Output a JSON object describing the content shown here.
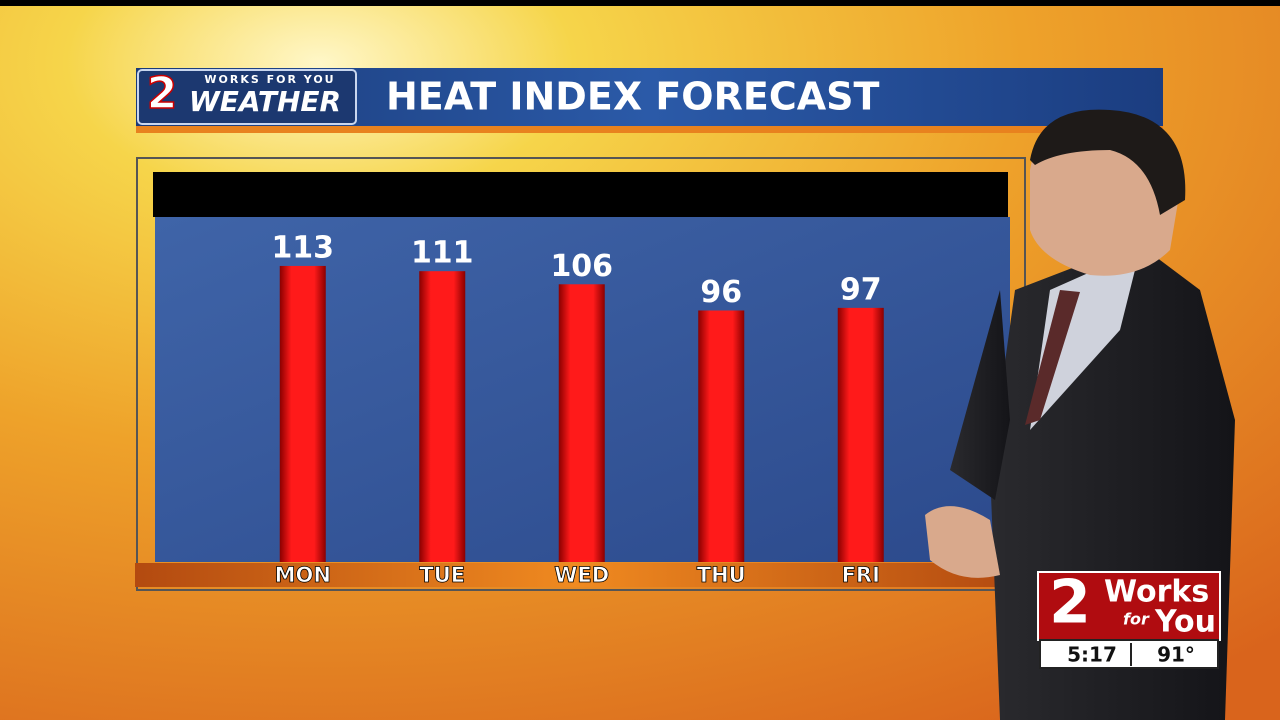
{
  "logo": {
    "number": "2",
    "tagline": "WORKS FOR YOU",
    "name": "WEATHER"
  },
  "chart_data": {
    "type": "bar",
    "title": "HEAT INDEX FORECAST",
    "categories": [
      "MON",
      "TUE",
      "WED",
      "THU",
      "FRI"
    ],
    "values": [
      113,
      111,
      106,
      96,
      97
    ],
    "color": "#e00000"
  },
  "bug": {
    "number": "2",
    "line1": "Works",
    "line2": "for",
    "line3": "You",
    "time": "5:17",
    "temp": "91°"
  }
}
